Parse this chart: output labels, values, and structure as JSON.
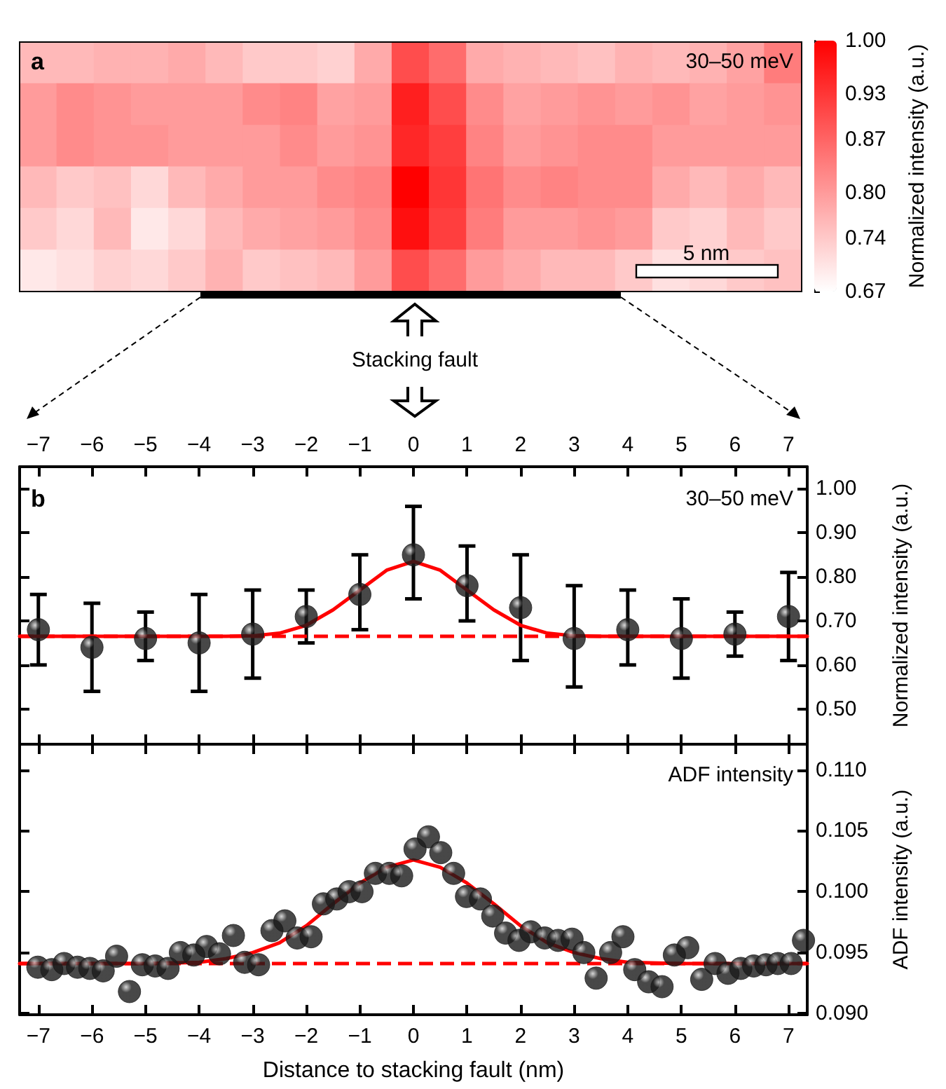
{
  "chart_data": [
    {
      "type": "heatmap",
      "clabel": "Normalized intensity (a.u.)",
      "annotations": [
        "a",
        "30–50 meV",
        "5 nm",
        "Stacking fault"
      ],
      "categories": [
        null,
        null,
        null,
        null,
        null,
        null,
        null,
        null,
        null,
        null,
        null,
        null,
        null,
        null,
        null,
        null,
        null,
        null,
        null,
        null,
        null
      ],
      "y_categories": [
        null,
        null,
        null,
        null,
        null,
        null
      ],
      "cells": [
        [
          0.76,
          0.76,
          0.77,
          0.77,
          0.78,
          0.76,
          0.74,
          0.74,
          0.73,
          0.78,
          0.9,
          0.86,
          0.78,
          0.77,
          0.76,
          0.75,
          0.77,
          0.76,
          0.77,
          0.79,
          0.84
        ],
        [
          0.8,
          0.82,
          0.81,
          0.8,
          0.8,
          0.8,
          0.82,
          0.83,
          0.79,
          0.8,
          0.96,
          0.9,
          0.82,
          0.79,
          0.8,
          0.81,
          0.8,
          0.81,
          0.79,
          0.8,
          0.81
        ],
        [
          0.8,
          0.82,
          0.81,
          0.81,
          0.8,
          0.8,
          0.8,
          0.82,
          0.8,
          0.81,
          0.95,
          0.92,
          0.83,
          0.8,
          0.81,
          0.82,
          0.82,
          0.8,
          0.8,
          0.8,
          0.8
        ],
        [
          0.76,
          0.74,
          0.75,
          0.72,
          0.76,
          0.78,
          0.8,
          0.8,
          0.82,
          0.83,
          1.0,
          0.93,
          0.85,
          0.82,
          0.83,
          0.82,
          0.82,
          0.78,
          0.76,
          0.78,
          0.76
        ],
        [
          0.74,
          0.72,
          0.76,
          0.7,
          0.72,
          0.76,
          0.78,
          0.79,
          0.8,
          0.82,
          0.98,
          0.92,
          0.84,
          0.8,
          0.8,
          0.81,
          0.8,
          0.74,
          0.73,
          0.76,
          0.74
        ],
        [
          0.7,
          0.71,
          0.73,
          0.72,
          0.74,
          0.77,
          0.74,
          0.75,
          0.76,
          0.8,
          0.9,
          0.86,
          0.8,
          0.78,
          0.76,
          0.76,
          0.74,
          0.71,
          0.72,
          0.74,
          0.75
        ]
      ],
      "clim": [
        0.67,
        1.0
      ],
      "cticks": [
        {
          "value": 0.67,
          "label": "0.67"
        },
        {
          "value": 0.74,
          "label": "0.74"
        },
        {
          "value": 0.8,
          "label": "0.80"
        },
        {
          "value": 0.87,
          "label": "0.87"
        },
        {
          "value": 0.93,
          "label": "0.93"
        },
        {
          "value": 1.0,
          "label": "1.00"
        }
      ]
    },
    {
      "type": "scatter",
      "ylabel": "Normalized intensity (a.u.)",
      "annotations": [
        "b",
        "30–50 meV"
      ],
      "x": [
        -7,
        -6,
        -5,
        -4,
        -3,
        -2,
        -1,
        0,
        1,
        2,
        3,
        4,
        5,
        6,
        7
      ],
      "series": [
        {
          "type": "scatter",
          "color": "#1a1a1a",
          "marker": "circle",
          "values": [
            0.68,
            0.64,
            0.66,
            0.65,
            0.67,
            0.71,
            0.76,
            0.85,
            0.78,
            0.73,
            0.66,
            0.68,
            0.66,
            0.67,
            0.71
          ],
          "errors": [
            [
              0.6,
              0.76
            ],
            [
              0.54,
              0.74
            ],
            [
              0.61,
              0.72
            ],
            [
              0.54,
              0.76
            ],
            [
              0.57,
              0.77
            ],
            [
              0.65,
              0.77
            ],
            [
              0.68,
              0.85
            ],
            [
              0.75,
              0.96
            ],
            [
              0.7,
              0.87
            ],
            [
              0.61,
              0.85
            ],
            [
              0.55,
              0.78
            ],
            [
              0.6,
              0.77
            ],
            [
              0.57,
              0.75
            ],
            [
              0.62,
              0.72
            ],
            [
              0.61,
              0.81
            ]
          ]
        },
        {
          "type": "line",
          "color": "#ff0000",
          "marker": "none",
          "line_style": "solid",
          "x": [
            -7.35,
            -3.5,
            -3,
            -2.5,
            -2,
            -1.5,
            -1,
            -0.5,
            0,
            0.5,
            1,
            1.5,
            2,
            2.5,
            3,
            3.5,
            7.35
          ],
          "values": [
            0.665,
            0.665,
            0.666,
            0.672,
            0.69,
            0.725,
            0.77,
            0.815,
            0.835,
            0.815,
            0.77,
            0.725,
            0.69,
            0.672,
            0.666,
            0.665,
            0.665
          ]
        }
      ],
      "ref_lines": [
        {
          "axis": "y",
          "value": 0.665,
          "color": "#ff0000",
          "line_style": "dashed"
        }
      ],
      "xlim": [
        -7.35,
        7.35
      ],
      "xticks": [
        {
          "value": -7,
          "label": "−7"
        },
        {
          "value": -6,
          "label": "−6"
        },
        {
          "value": -5,
          "label": "−5"
        },
        {
          "value": -4,
          "label": "−4"
        },
        {
          "value": -3,
          "label": "−3"
        },
        {
          "value": -2,
          "label": "−2"
        },
        {
          "value": -1,
          "label": "−1"
        },
        0,
        1,
        2,
        3,
        4,
        5,
        6,
        7
      ],
      "ylim": [
        0.42,
        1.05
      ],
      "yticks": [
        {
          "value": 0.5,
          "label": "0.50"
        },
        {
          "value": 0.6,
          "label": "0.60"
        },
        {
          "value": 0.7,
          "label": "0.70"
        },
        {
          "value": 0.8,
          "label": "0.80"
        },
        {
          "value": 0.9,
          "label": "0.90"
        },
        {
          "value": 1.0,
          "label": "1.00"
        }
      ]
    },
    {
      "type": "scatter",
      "xlabel": "Distance to stacking fault (nm)",
      "ylabel": "ADF intensity (a.u.)",
      "annotations": [
        "ADF intensity"
      ],
      "x": [
        -7.01,
        -6.75,
        -6.52,
        -6.27,
        -6.04,
        -5.79,
        -5.54,
        -5.3,
        -5.06,
        -4.82,
        -4.58,
        -4.35,
        -4.1,
        -3.86,
        -3.62,
        -3.36,
        -3.15,
        -2.89,
        -2.64,
        -2.4,
        -2.17,
        -1.91,
        -1.68,
        -1.43,
        -1.2,
        -0.96,
        -0.71,
        -0.45,
        -0.22,
        0.03,
        0.28,
        0.51,
        0.75,
        0.99,
        1.25,
        1.48,
        1.72,
        1.97,
        2.19,
        2.45,
        2.7,
        2.96,
        3.18,
        3.41,
        3.68,
        3.91,
        4.13,
        4.39,
        4.64,
        4.87,
        5.12,
        5.38,
        5.63,
        5.87,
        6.11,
        6.35,
        6.58,
        6.8,
        7.05,
        7.28
      ],
      "series": [
        {
          "type": "scatter",
          "color": "#1a1a1a",
          "marker": "circle",
          "values": [
            0.0938,
            0.0936,
            0.0941,
            0.0938,
            0.0937,
            0.0935,
            0.0947,
            0.0918,
            0.094,
            0.0939,
            0.0937,
            0.095,
            0.0948,
            0.0955,
            0.0949,
            0.0964,
            0.0942,
            0.094,
            0.0968,
            0.0976,
            0.0962,
            0.0963,
            0.099,
            0.0994,
            0.1,
            0.1,
            0.1015,
            0.1015,
            0.1013,
            0.1035,
            0.1045,
            0.1032,
            0.1015,
            0.0996,
            0.0994,
            0.098,
            0.0966,
            0.096,
            0.0967,
            0.0962,
            0.096,
            0.0961,
            0.095,
            0.0929,
            0.095,
            0.0963,
            0.0936,
            0.0926,
            0.0922,
            0.0948,
            0.0954,
            0.0928,
            0.0941,
            0.0933,
            0.0937,
            0.0939,
            0.094,
            0.0941,
            0.0941,
            0.096
          ]
        },
        {
          "type": "line",
          "color": "#ff0000",
          "marker": "none",
          "line_style": "solid",
          "x": [
            -7.35,
            -5,
            -4,
            -3.5,
            -3,
            -2.5,
            -2,
            -1.5,
            -1,
            -0.5,
            0,
            0.5,
            1,
            1.5,
            2,
            2.5,
            3,
            3.5,
            4,
            5,
            7.35
          ],
          "values": [
            0.0941,
            0.0941,
            0.0942,
            0.0945,
            0.095,
            0.0958,
            0.0972,
            0.099,
            0.1007,
            0.102,
            0.1026,
            0.102,
            0.1007,
            0.099,
            0.0972,
            0.0958,
            0.095,
            0.0945,
            0.0942,
            0.0941,
            0.0941
          ]
        }
      ],
      "ref_lines": [
        {
          "axis": "y",
          "value": 0.0941,
          "color": "#ff0000",
          "line_style": "dashed"
        }
      ],
      "xlim": [
        -7.35,
        7.35
      ],
      "xticks": [
        {
          "value": -7,
          "label": "−7"
        },
        {
          "value": -6,
          "label": "−6"
        },
        {
          "value": -5,
          "label": "−5"
        },
        {
          "value": -4,
          "label": "−4"
        },
        {
          "value": -3,
          "label": "−3"
        },
        {
          "value": -2,
          "label": "−2"
        },
        {
          "value": -1,
          "label": "−1"
        },
        0,
        1,
        2,
        3,
        4,
        5,
        6,
        7
      ],
      "ylim": [
        0.0899,
        0.1121
      ],
      "yticks": [
        {
          "value": 0.09,
          "label": "0.090"
        },
        {
          "value": 0.095,
          "label": "0.095"
        },
        {
          "value": 0.1,
          "label": "0.100"
        },
        {
          "value": 0.105,
          "label": "0.105"
        },
        {
          "value": 0.11,
          "label": "0.110"
        }
      ]
    }
  ]
}
